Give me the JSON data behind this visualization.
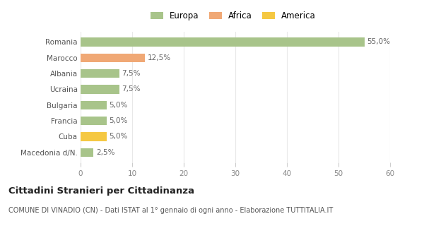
{
  "categories": [
    "Macedonia d/N.",
    "Cuba",
    "Francia",
    "Bulgaria",
    "Ucraina",
    "Albania",
    "Marocco",
    "Romania"
  ],
  "values": [
    2.5,
    5.0,
    5.0,
    5.0,
    7.5,
    7.5,
    12.5,
    55.0
  ],
  "bar_colors": [
    "#a8c48a",
    "#f5c842",
    "#a8c48a",
    "#a8c48a",
    "#a8c48a",
    "#a8c48a",
    "#f0a875",
    "#a8c48a"
  ],
  "labels": [
    "2,5%",
    "5,0%",
    "5,0%",
    "5,0%",
    "7,5%",
    "7,5%",
    "12,5%",
    "55,0%"
  ],
  "legend": [
    {
      "label": "Europa",
      "color": "#a8c48a"
    },
    {
      "label": "Africa",
      "color": "#f0a875"
    },
    {
      "label": "America",
      "color": "#f5c842"
    }
  ],
  "xlim": [
    0,
    60
  ],
  "xticks": [
    0,
    10,
    20,
    30,
    40,
    50,
    60
  ],
  "title": "Cittadini Stranieri per Cittadinanza",
  "subtitle": "COMUNE DI VINADIO (CN) - Dati ISTAT al 1° gennaio di ogni anno - Elaborazione TUTTITALIA.IT",
  "background_color": "#ffffff",
  "grid_color": "#e8e8e8"
}
